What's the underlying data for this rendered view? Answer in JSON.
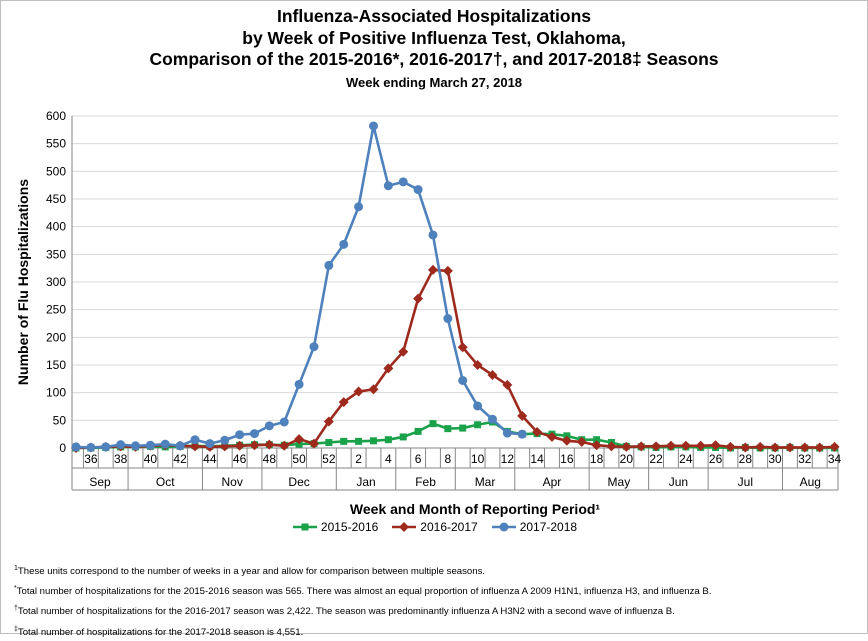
{
  "chart_data": {
    "type": "line",
    "title_lines": [
      "Influenza-Associated Hospitalizations",
      "by Week of Positive Influenza Test, Oklahoma,",
      "Comparison of the 2015-2016*, 2016-2017†, and 2017-2018‡ Seasons"
    ],
    "subtitle": "Week ending March 27, 2018",
    "ylabel": "Number of Flu Hospitalizations",
    "xlabel": "Week and Month of Reporting Period¹",
    "ylim": [
      0,
      600
    ],
    "yticks": [
      0,
      50,
      100,
      150,
      200,
      250,
      300,
      350,
      400,
      450,
      500,
      550,
      600
    ],
    "x": [
      35,
      36,
      37,
      38,
      39,
      40,
      41,
      42,
      43,
      44,
      45,
      46,
      47,
      48,
      49,
      50,
      51,
      52,
      1,
      2,
      3,
      4,
      5,
      6,
      7,
      8,
      9,
      10,
      11,
      12,
      13,
      14,
      15,
      16,
      17,
      18,
      19,
      20,
      21,
      22,
      23,
      24,
      25,
      26,
      27,
      28,
      29,
      30,
      31,
      32,
      33,
      34
    ],
    "xtick_labels": [
      "36",
      "38",
      "40",
      "42",
      "44",
      "46",
      "48",
      "50",
      "52",
      "2",
      "4",
      "6",
      "8",
      "10",
      "12",
      "14",
      "16",
      "18",
      "20",
      "22",
      "24",
      "26",
      "28",
      "30",
      "32",
      "34"
    ],
    "months": [
      "Sep",
      "Oct",
      "Nov",
      "Dec",
      "Jan",
      "Feb",
      "Mar",
      "Apr",
      "May",
      "Jun",
      "Jul",
      "Aug"
    ],
    "grid": "horizontal",
    "legend_position": "bottom",
    "series": [
      {
        "name": "2015-2016",
        "color": "#1aa24a",
        "marker": "square",
        "values": [
          0,
          0,
          1,
          2,
          2,
          3,
          2,
          3,
          4,
          3,
          4,
          5,
          6,
          6,
          5,
          7,
          8,
          10,
          12,
          12,
          13,
          15,
          20,
          30,
          44,
          35,
          36,
          42,
          47,
          30,
          25,
          26,
          25,
          22,
          15,
          15,
          10,
          3,
          2,
          1,
          2,
          2,
          1,
          1,
          0,
          1,
          0,
          0,
          1,
          0,
          0,
          0
        ]
      },
      {
        "name": "2016-2017",
        "color": "#9e2a1e",
        "marker": "diamond",
        "values": [
          0,
          1,
          2,
          3,
          2,
          4,
          5,
          4,
          3,
          2,
          3,
          4,
          5,
          6,
          4,
          16,
          8,
          48,
          83,
          102,
          106,
          144,
          174,
          270,
          322,
          320,
          182,
          150,
          132,
          114,
          58,
          29,
          20,
          13,
          11,
          5,
          3,
          2,
          3,
          3,
          4,
          4,
          4,
          5,
          2,
          1,
          2,
          1,
          1,
          1,
          1,
          2
        ]
      },
      {
        "name": "2017-2018",
        "color": "#4f81bd",
        "marker": "circle",
        "values": [
          2,
          1,
          2,
          6,
          4,
          5,
          7,
          4,
          15,
          8,
          14,
          24,
          26,
          40,
          47,
          115,
          183,
          330,
          368,
          436,
          582,
          474,
          481,
          467,
          385,
          234,
          122,
          76,
          52,
          27,
          25,
          null,
          null,
          null,
          null,
          null,
          null,
          null,
          null,
          null,
          null,
          null,
          null,
          null,
          null,
          null,
          null,
          null,
          null,
          null,
          null,
          null
        ]
      }
    ]
  },
  "footnotes": [
    {
      "mark": "1",
      "text": "These units correspond to the number of weeks in a year and allow for comparison between multiple seasons."
    },
    {
      "mark": "*",
      "text": "Total number of hospitalizations for the 2015-2016 season was 565.  There was almost an equal proportion of influenza A 2009 H1N1, influenza H3, and influenza B."
    },
    {
      "mark": "†",
      "text": "Total number of hospitalizations for the 2016-2017 season was 2,422.  The season was predominantly influenza A H3N2 with a second wave of influenza B."
    },
    {
      "mark": "‡",
      "text": "Total number of hospitalizations for the 2017-2018 season is 4,551."
    }
  ]
}
